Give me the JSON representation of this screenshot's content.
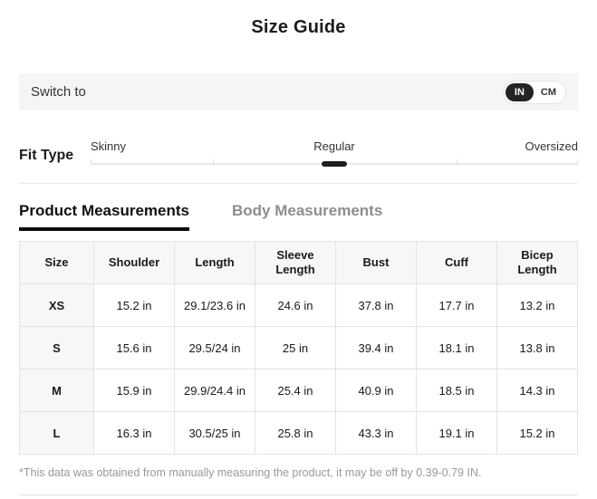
{
  "title": "Size Guide",
  "unit_switch": {
    "label": "Switch to",
    "options": [
      {
        "label": "IN",
        "selected": true
      },
      {
        "label": "CM",
        "selected": false
      }
    ]
  },
  "fit_type": {
    "label": "Fit Type",
    "options": [
      {
        "label": "Skinny",
        "selected": false
      },
      {
        "label": "Regular",
        "selected": true
      },
      {
        "label": "Oversized",
        "selected": false
      }
    ]
  },
  "tabs": [
    {
      "label": "Product Measurements",
      "selected": true
    },
    {
      "label": "Body Measurements",
      "selected": false
    }
  ],
  "table": {
    "columns": [
      "Size",
      "Shoulder",
      "Length",
      "Sleeve Length",
      "Bust",
      "Cuff",
      "Bicep Length"
    ],
    "rows": [
      {
        "size": "XS",
        "values": [
          "15.2 in",
          "29.1/23.6 in",
          "24.6 in",
          "37.8 in",
          "17.7 in",
          "13.2 in"
        ]
      },
      {
        "size": "S",
        "values": [
          "15.6 in",
          "29.5/24 in",
          "25 in",
          "39.4 in",
          "18.1 in",
          "13.8 in"
        ]
      },
      {
        "size": "M",
        "values": [
          "15.9 in",
          "29.9/24.4 in",
          "25.4 in",
          "40.9 in",
          "18.5 in",
          "14.3 in"
        ]
      },
      {
        "size": "L",
        "values": [
          "16.3 in",
          "30.5/25 in",
          "25.8 in",
          "43.3 in",
          "19.1 in",
          "15.2 in"
        ]
      }
    ]
  },
  "footnote": "*This data was obtained from manually measuring the product, it may be off by 0.39-0.79 IN.",
  "colors": {
    "accent": "#1f1f1f",
    "bar_background": "#f5f5f5",
    "table_header_background": "#f7f7f7",
    "muted_text": "#999999"
  }
}
